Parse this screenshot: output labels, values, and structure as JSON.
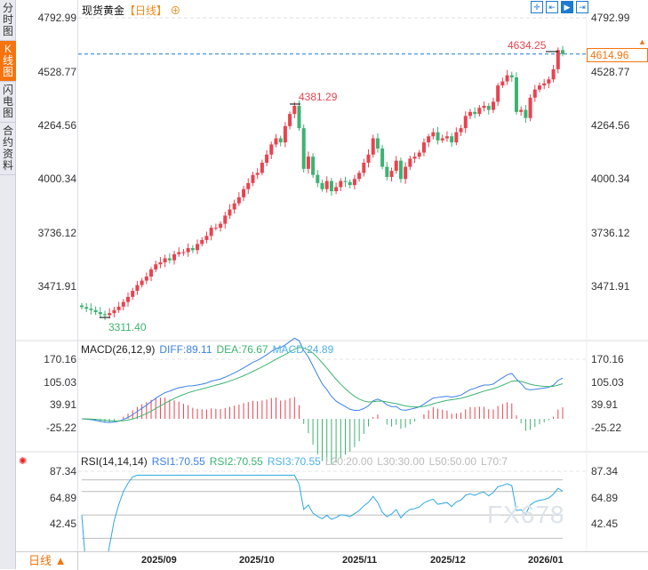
{
  "sidebar": {
    "tabs": [
      {
        "label": "分时图",
        "active": false
      },
      {
        "label": "K线图",
        "active": true
      },
      {
        "label": "闪电图",
        "active": false
      },
      {
        "label": "合约资料",
        "active": false
      }
    ]
  },
  "header": {
    "title": "现货黄金",
    "period": "【日线】",
    "add_icon": "plus-circle-icon"
  },
  "toolbar": {
    "icons": [
      "crosshair-icon",
      "fit-range-icon",
      "play-right-icon",
      "jump-end-icon"
    ]
  },
  "price_axis": {
    "labels": [
      "4792.99",
      "4528.77",
      "4264.56",
      "4000.34",
      "3736.12",
      "3471.91"
    ]
  },
  "annotations": {
    "high_label": "4634.25",
    "peak_label": "4381.29",
    "low_label": "3311.40",
    "last_price": "4614.96"
  },
  "macd": {
    "title": "MACD(26,12,9)",
    "diff": "DIFF:89.11",
    "dea": "DEA:76.67",
    "macd": "MACD:24.89",
    "axis": [
      "170.16",
      "105.03",
      "39.91",
      "-25.22"
    ]
  },
  "rsi": {
    "title": "RSI(14,14,14)",
    "rsi1": "RSI1:70.55",
    "rsi2": "RSI2:70.55",
    "rsi3": "RSI3:70.55",
    "l20": "L20:20.00",
    "l30": "L30:30.00",
    "l50": "L50:50.00",
    "l70": "L70:7",
    "axis": [
      "87.34",
      "64.89",
      "42.45"
    ]
  },
  "bottom": {
    "period_label": "日线 ▲",
    "dates": [
      "2025/09",
      "2025/10",
      "2025/11",
      "2025/12",
      "2026/01"
    ]
  },
  "watermark": "FX678",
  "colors": {
    "up": "#e8434f",
    "down": "#3cb371",
    "diff": "#3b82e6",
    "dea": "#3cb371",
    "accent": "#f5740f",
    "rsi": "#2aa8e0"
  },
  "chart_data": {
    "type": "candlestick",
    "closes": [
      3370,
      3362,
      3355,
      3345,
      3335,
      3330,
      3340,
      3355,
      3372,
      3395,
      3420,
      3450,
      3478,
      3500,
      3520,
      3555,
      3580,
      3590,
      3610,
      3600,
      3630,
      3640,
      3640,
      3660,
      3650,
      3680,
      3700,
      3720,
      3760,
      3760,
      3780,
      3820,
      3850,
      3880,
      3910,
      3950,
      3980,
      4020,
      4030,
      4080,
      4120,
      4170,
      4200,
      4180,
      4260,
      4320,
      4360,
      4250,
      4050,
      4110,
      4020,
      3980,
      3950,
      3990,
      3940,
      3960,
      3990,
      3985,
      3970,
      4000,
      4030,
      4080,
      4120,
      4200,
      4150,
      4060,
      4010,
      4040,
      4090,
      4000,
      4060,
      4100,
      4110,
      4130,
      4180,
      4210,
      4230,
      4190,
      4200,
      4210,
      4180,
      4230,
      4250,
      4310,
      4330,
      4320,
      4350,
      4360,
      4340,
      4380,
      4460,
      4480,
      4510,
      4500,
      4330,
      4340,
      4300,
      4400,
      4440,
      4460,
      4470,
      4490,
      4540,
      4634,
      4615
    ],
    "ylim": [
      3471.91,
      4792.99
    ]
  }
}
